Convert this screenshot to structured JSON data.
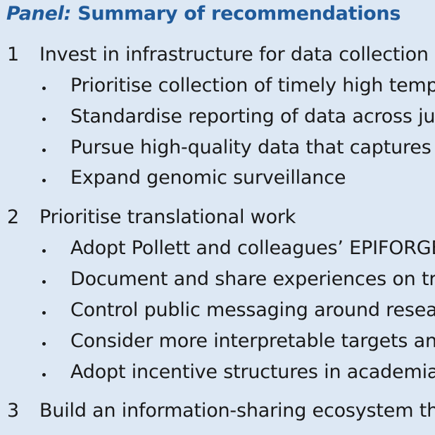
{
  "panel": {
    "label": "Panel:",
    "title": "Summary of recommendations"
  },
  "recommendations": [
    {
      "number": "1",
      "text": "Invest in infrastructure for data collection",
      "bullets": [
        "Prioritise collection of timely high tempo",
        "Standardise reporting of data across juris",
        "Pursue high-quality data that captures ri",
        "Expand genomic surveillance"
      ]
    },
    {
      "number": "2",
      "text": "Prioritise translational work",
      "bullets": [
        "Adopt Pollett and colleagues’ EPIFORGE",
        "Document and share experiences on tran",
        "Control public messaging around researc",
        "Consider more interpretable targets and",
        "Adopt incentive structures in academia t"
      ]
    },
    {
      "number": "3",
      "text": "Build an information-sharing ecosystem tha",
      "bullets": []
    }
  ]
}
